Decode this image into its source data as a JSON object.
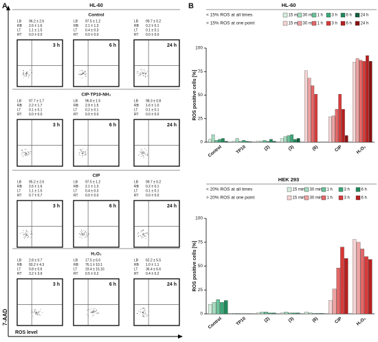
{
  "panel_a": {
    "label": "A",
    "title": "HL-60",
    "y_axis": "7-AAD",
    "x_axis": "ROS level",
    "quadrant_labels": [
      "LB",
      "RB",
      "LT",
      "RT"
    ],
    "groups": [
      {
        "name": "Control",
        "plots": [
          {
            "time": "3 h",
            "stats": [
              "96.2 ± 2.6",
              "2.6 ± 1.6",
              "1.1 ± 1.5",
              "0.0 ± 0.0"
            ]
          },
          {
            "time": "6 h",
            "stats": [
              "97.5 ± 1.2",
              "2.1 ± 1.3",
              "0.4 ± 0.3",
              "0.0 ± 0.0"
            ]
          },
          {
            "time": "24 h",
            "stats": [
              "99.7 ± 0.2",
              "0.2 ± 0.1",
              "0.1 ± 0.1",
              "0.0 ± 0.0"
            ]
          }
        ]
      },
      {
        "name": "CIP-TP10-NH₂",
        "plots": [
          {
            "time": "3 h",
            "stats": [
              "97.7 ± 1.7",
              "2.2 ± 1.7",
              "0.1 ± 0.1",
              "0.0 ± 0.0"
            ]
          },
          {
            "time": "6 h",
            "stats": [
              "96.8 ± 1.5",
              "2.9 ± 1.5",
              "0.2 ± 0.1",
              "0.0 ± 0.0"
            ]
          },
          {
            "time": "24 h",
            "stats": [
              "98.3 ± 0.8",
              "1.6 ± 1.0",
              "0.1 ± 0.1",
              "0.0 ± 0.0"
            ]
          }
        ]
      },
      {
        "name": "CIP",
        "plots": [
          {
            "time": "3 h",
            "stats": [
              "95.2 ± 2.6",
              "2.6 ± 1.6",
              "1.1 ± 1.5",
              "0.7 ± 0.7"
            ]
          },
          {
            "time": "6 h",
            "stats": [
              "97.5 ± 1.2",
              "2.1 ± 1.3",
              "0.4 ± 0.3",
              "0.0 ± 0.0"
            ]
          },
          {
            "time": "24 h",
            "stats": [
              "99.7 ± 0.2",
              "0.2 ± 0.1",
              "0.1 ± 0.1",
              "0.0 ± 0.0"
            ]
          }
        ]
      },
      {
        "name": "H₂O₂",
        "plots": [
          {
            "time": "3 h",
            "stats": [
              "2.8 ± 0.7",
              "93.2 ± 4.3",
              "0.8 ± 0.6",
              "3.2 ± 3.9"
            ]
          },
          {
            "time": "6 h",
            "stats": [
              "17.5 ± 6.0",
              "76.1 ± 10.1",
              "19.4 ± 15.16",
              "0.5 ± 0.2"
            ]
          },
          {
            "time": "24 h",
            "stats": [
              "62.2 ± 5.5",
              "1.0 ± 1.1",
              "36.4 ± 6.6",
              "0.4 ± 0.2"
            ]
          }
        ]
      }
    ]
  },
  "panel_b_label": "B",
  "chart_data": [
    {
      "type": "bar",
      "title": "HL-60",
      "ylabel": "ROS positive cells [%]",
      "categories": [
        "Control",
        "TP10",
        "(2)",
        "(3)",
        "(6)",
        "CIP",
        "H₂O₂"
      ],
      "ylim": [
        0,
        100
      ],
      "yticks": [
        0,
        25,
        50,
        75,
        100
      ],
      "groups": [
        {
          "label": "< 15% ROS at all times",
          "series": [
            {
              "name": "15 min",
              "color": "#d6efdf",
              "values": [
                3,
                1,
                1,
                4,
                null,
                null,
                null
              ]
            },
            {
              "name": "30 min",
              "color": "#a6dbbf",
              "values": [
                8,
                4,
                1,
                6,
                null,
                null,
                null
              ]
            },
            {
              "name": "1 h",
              "color": "#6cc39a",
              "values": [
                2,
                1,
                2,
                7,
                null,
                null,
                null
              ]
            },
            {
              "name": "3 h",
              "color": "#3aa878",
              "values": [
                3,
                2,
                1,
                8,
                null,
                null,
                null
              ]
            },
            {
              "name": "6 h",
              "color": "#1f8a5a",
              "values": [
                4,
                1,
                3,
                3,
                null,
                null,
                null
              ]
            },
            {
              "name": "24 h",
              "color": "#0f5e3c",
              "values": [
                1,
                0.5,
                1,
                4,
                null,
                null,
                null
              ]
            }
          ]
        },
        {
          "label": "> 15% ROS at one point",
          "series": [
            {
              "name": "15 min",
              "color": "#f6d4d4",
              "values": [
                null,
                null,
                null,
                null,
                76,
                27,
                85
              ]
            },
            {
              "name": "30 min",
              "color": "#eea4a4",
              "values": [
                null,
                null,
                null,
                null,
                68,
                28,
                89
              ]
            },
            {
              "name": "1 h",
              "color": "#e46868",
              "values": [
                null,
                null,
                null,
                null,
                60,
                35,
                87
              ]
            },
            {
              "name": "3 h",
              "color": "#d83a3a",
              "values": [
                null,
                null,
                null,
                null,
                51,
                51,
                86
              ]
            },
            {
              "name": "6 h",
              "color": "#b81f1f",
              "values": [
                null,
                null,
                null,
                null,
                null,
                35,
                92
              ]
            },
            {
              "name": "24 h",
              "color": "#8a0f0f",
              "values": [
                null,
                null,
                null,
                null,
                null,
                7,
                86
              ]
            }
          ]
        }
      ]
    },
    {
      "type": "bar",
      "title": "HEK 293",
      "ylabel": "ROS positive cells [%]",
      "categories": [
        "Control",
        "TP10",
        "(2)",
        "(3)",
        "(6)",
        "CIP",
        "H₂O₂"
      ],
      "ylim": [
        0,
        100
      ],
      "yticks": [
        0,
        25,
        50,
        75,
        100
      ],
      "groups": [
        {
          "label": "< 20% ROS at all times",
          "series": [
            {
              "name": "15 min",
              "color": "#d6efdf",
              "values": [
                10,
                0.5,
                1,
                1,
                2,
                null,
                null
              ]
            },
            {
              "name": "30 min",
              "color": "#a6dbbf",
              "values": [
                12,
                0.5,
                2,
                2,
                1,
                null,
                null
              ]
            },
            {
              "name": "1 h",
              "color": "#6cc39a",
              "values": [
                15,
                0.3,
                2,
                1,
                0.5,
                null,
                null
              ]
            },
            {
              "name": "3 h",
              "color": "#3aa878",
              "values": [
                12,
                0.3,
                1,
                1,
                0.5,
                null,
                null
              ]
            },
            {
              "name": "6 h",
              "color": "#1f8a5a",
              "values": [
                14,
                0.3,
                1,
                1,
                0.5,
                null,
                null
              ]
            }
          ]
        },
        {
          "label": "> 20% ROS at one point",
          "series": [
            {
              "name": "15 min",
              "color": "#f6d4d4",
              "values": [
                null,
                null,
                null,
                null,
                null,
                14,
                78
              ]
            },
            {
              "name": "30 min",
              "color": "#eea4a4",
              "values": [
                null,
                null,
                null,
                null,
                null,
                26,
                75
              ]
            },
            {
              "name": "1 h",
              "color": "#e46868",
              "values": [
                null,
                null,
                null,
                null,
                null,
                48,
                68
              ]
            },
            {
              "name": "3 h",
              "color": "#d83a3a",
              "values": [
                null,
                null,
                null,
                null,
                null,
                70,
                60
              ]
            },
            {
              "name": "6 h",
              "color": "#b81f1f",
              "values": [
                null,
                null,
                null,
                null,
                null,
                58,
                57
              ]
            }
          ]
        }
      ]
    }
  ]
}
